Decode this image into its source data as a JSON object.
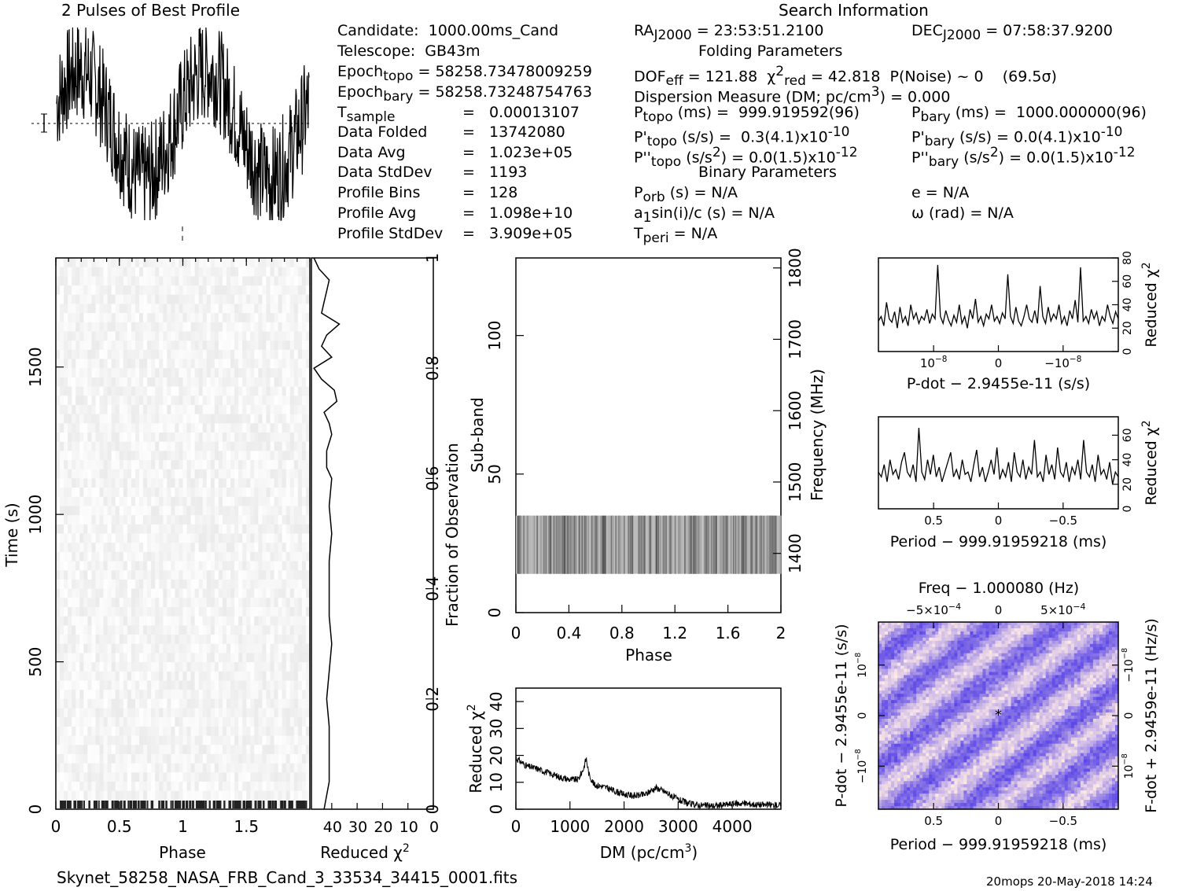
{
  "profile": {
    "title": "2 Pulses of Best Profile"
  },
  "info": {
    "search_title": "Search Information",
    "candidate": "Candidate:  1000.00ms_Cand",
    "telescope": "Telescope:  GB43m",
    "epoch_topo_lbl": "Epoch",
    "epoch_topo_sub": "topo",
    "epoch_topo_val": " = 58258.73478009259",
    "epoch_bary_lbl": "Epoch",
    "epoch_bary_sub": "bary",
    "epoch_bary_val": " = 58258.73248754763",
    "tsample_lbl": "T",
    "tsample_sub": "sample",
    "tsample_val": "=   0.00013107",
    "data_folded_lbl": "Data Folded",
    "data_folded_val": "=   13742080",
    "data_avg_lbl": "Data Avg",
    "data_avg_val": "=   1.023e+05",
    "data_std_lbl": "Data StdDev",
    "data_std_val": "=   1193",
    "prof_bins_lbl": "Profile Bins",
    "prof_bins_val": "=   128",
    "prof_avg_lbl": "Profile Avg",
    "prof_avg_val": "=   1.098e+10",
    "prof_std_lbl": "Profile StdDev",
    "prof_std_val": "=   3.909e+05",
    "ra_lbl": "RA",
    "ra_sub": "J2000",
    "ra_val": " = 23:53:51.2100",
    "dec_lbl": "DEC",
    "dec_sub": "J2000",
    "dec_val": " = 07:58:37.9200",
    "folding_title": "Folding Parameters",
    "dof_lbl": "DOF",
    "dof_sub": "eff",
    "dof_val": " = 121.88  ",
    "chi_sym": "χ",
    "chi_sup": "2",
    "chi_sub": "red",
    "chi_val": " = 42.818  P(Noise) ~ 0    (69.5σ)",
    "dm_text": "Dispersion Measure (DM; pc/cm",
    "dm_sup": "3",
    "dm_val": ") = 0.000",
    "ptopo_lbl": "P",
    "ptopo_sub": "topo",
    "ptopo_val": " (ms) =  999.919592(96)",
    "pbary_lbl": "P",
    "pbary_sub": "bary",
    "pbary_val": " (ms) =  1000.000000(96)",
    "pdtopo_lbl": "P'",
    "pdtopo_sub": "topo",
    "pdtopo_val": " (s/s) =  0.3(4.1)x10",
    "pdtopo_exp": "-10",
    "pdbary_lbl": "P'",
    "pdbary_sub": "bary",
    "pdbary_val": " (s/s) = 0.0(4.1)x10",
    "pdbary_exp": "-10",
    "pddtopo_lbl": "P''",
    "pddtopo_sub": "topo",
    "pddtopo_val": " (s/s",
    "pddtopo_sup": "2",
    "pddtopo_val2": ") = 0.0(1.5)x10",
    "pddtopo_exp": "-12",
    "pddbary_lbl": "P''",
    "pddbary_sub": "bary",
    "pddbary_val": " (s/s",
    "pddbary_sup": "2",
    "pddbary_val2": ") = 0.0(1.5)x10",
    "pddbary_exp": "-12",
    "binary_title": "Binary Parameters",
    "porb_lbl": "P",
    "porb_sub": "orb",
    "porb_val": " (s) = N/A",
    "e_val": "e = N/A",
    "asini_lbl": "a",
    "asini_sub": "1",
    "asini_val": "sin(i)/c (s) = N/A",
    "omega_val": "ω (rad) = N/A",
    "tperi_lbl": "T",
    "tperi_sub": "peri",
    "tperi_val": " = N/A"
  },
  "footer": {
    "filename": "Skynet_58258_NASA_FRB_Cand_3_33534_34415_0001.fits",
    "stamp": "20mops 20-May-2018 14:24"
  },
  "colors": {
    "line": "#000000",
    "pdot_map_base": "#8888dd",
    "grey": "#dddddd"
  },
  "chart_data": [
    {
      "type": "line",
      "name": "pulse-profile",
      "title": "2 Pulses of Best Profile",
      "xlim": [
        0,
        2
      ],
      "pulses_shown": 2,
      "note_errorbar": true
    },
    {
      "type": "heatmap",
      "name": "time-vs-phase",
      "xlabel": "Phase",
      "ylabel": "Time (s)",
      "xlim": [
        0,
        2
      ],
      "ylim": [
        0,
        1870
      ],
      "xticks": [
        "0",
        "0.5",
        "1",
        "1.5"
      ],
      "yticks": [
        "0",
        "500",
        "1000",
        "1500"
      ],
      "colormap": "grey"
    },
    {
      "type": "line",
      "name": "reduced-chi2-vs-time",
      "xlabel": "Reduced χ2",
      "xticks": [
        "40",
        "30",
        "20",
        "10",
        "0"
      ],
      "y2label": "Fraction of Observation",
      "y2ticks": [
        "0",
        "0.2",
        "0.4",
        "0.6",
        "0.8",
        "1"
      ],
      "x_reversed": true,
      "xlim": [
        0,
        48
      ],
      "fraction": [
        0.0,
        0.05,
        0.1,
        0.15,
        0.2,
        0.25,
        0.3,
        0.35,
        0.4,
        0.45,
        0.5,
        0.55,
        0.6,
        0.62,
        0.65,
        0.68,
        0.7,
        0.72,
        0.74,
        0.76,
        0.78,
        0.8,
        0.82,
        0.84,
        0.86,
        0.88,
        0.9,
        0.92,
        0.94,
        0.96,
        0.98,
        1.0
      ],
      "values": [
        43,
        41,
        41,
        41,
        42,
        41,
        40,
        41,
        41,
        41,
        40,
        41,
        40,
        42,
        42,
        40,
        41,
        43,
        38,
        39,
        44,
        47,
        40,
        44,
        42,
        37,
        44,
        43,
        42,
        41,
        45,
        47
      ]
    },
    {
      "type": "heatmap",
      "name": "subband-vs-phase",
      "xlabel": "Phase",
      "ylabel": "Sub-band",
      "y2label": "Frequency (MHz)",
      "xlim": [
        0,
        2
      ],
      "ylim": [
        0,
        128
      ],
      "xticks": [
        "0",
        "0.4",
        "0.8",
        "1.2",
        "1.6",
        "2"
      ],
      "yticks": [
        "0",
        "50",
        "100"
      ],
      "y2ticks": [
        "1400",
        "1500",
        "1600",
        "1700",
        "1800"
      ],
      "y2lim": [
        1317,
        1814
      ],
      "active_subbands": [
        14,
        35
      ]
    },
    {
      "type": "line",
      "name": "dm-chi2",
      "xlabel": "DM (pc/cm3)",
      "ylabel": "Reduced χ2",
      "xlim": [
        0,
        4900
      ],
      "ylim": [
        0,
        45
      ],
      "xticks": [
        "0",
        "1000",
        "2000",
        "3000",
        "4000"
      ],
      "yticks": [
        "0",
        "10",
        "20",
        "30",
        "40"
      ],
      "x": [
        0,
        200,
        400,
        600,
        800,
        1000,
        1150,
        1250,
        1300,
        1350,
        1450,
        1600,
        1800,
        2000,
        2200,
        2400,
        2500,
        2600,
        2700,
        2800,
        3000,
        3200,
        3400,
        3600,
        3800,
        4000,
        4200,
        4400,
        4600,
        4900
      ],
      "values": [
        19,
        16,
        15,
        13.5,
        12,
        11,
        11,
        15,
        19,
        13,
        9,
        8.5,
        7,
        5.5,
        5,
        5.5,
        7,
        8,
        7,
        6,
        3.5,
        2,
        1.5,
        1.2,
        1.5,
        2,
        2.2,
        1.8,
        1.6,
        1.5
      ]
    },
    {
      "type": "line",
      "name": "pdot-chi2",
      "xlabel": "P-dot − 2.9455e-11 (s/s)",
      "y2label": "Reduced χ2",
      "xticks": [
        "10−8",
        "0",
        "−10−8"
      ],
      "y2ticks": [
        "0",
        "20",
        "40",
        "60",
        "80"
      ],
      "ylim": [
        0,
        80
      ],
      "values": [
        26,
        30,
        22,
        42,
        28,
        25,
        34,
        20,
        38,
        25,
        30,
        22,
        40,
        28,
        33,
        24,
        30,
        27,
        36,
        24,
        32,
        28,
        74,
        30,
        24,
        35,
        27,
        22,
        31,
        25,
        40,
        24,
        30,
        20,
        36,
        28,
        45,
        25,
        30,
        22,
        32,
        28,
        40,
        26,
        30,
        24,
        33,
        28,
        66,
        30,
        24,
        38,
        26,
        22,
        30,
        40,
        28,
        25,
        35,
        24,
        56,
        30,
        24,
        38,
        26,
        32,
        28,
        40,
        24,
        30,
        22,
        35,
        28,
        44,
        25,
        72,
        26,
        30,
        24,
        36,
        28,
        34,
        22,
        30,
        26,
        40,
        30,
        24,
        34,
        28
      ]
    },
    {
      "type": "line",
      "name": "period-chi2",
      "xlabel": "Period − 999.91959218 (ms)",
      "y2label": "Reduced χ2",
      "xticks": [
        "0.5",
        "0",
        "−0.5"
      ],
      "y2ticks": [
        "0",
        "20",
        "40",
        "60"
      ],
      "ylim": [
        0,
        75
      ],
      "values": [
        30,
        26,
        36,
        22,
        40,
        28,
        32,
        24,
        38,
        46,
        30,
        26,
        36,
        22,
        66,
        30,
        24,
        40,
        28,
        44,
        26,
        34,
        22,
        30,
        38,
        46,
        26,
        32,
        24,
        40,
        28,
        30,
        22,
        36,
        48,
        26,
        34,
        22,
        30,
        40,
        28,
        50,
        24,
        32,
        26,
        38,
        22,
        46,
        30,
        26,
        40,
        24,
        34,
        28,
        56,
        26,
        30,
        22,
        44,
        28,
        36,
        24,
        50,
        30,
        26,
        38,
        22,
        34,
        28,
        40,
        24,
        56,
        30,
        26,
        36,
        22,
        44,
        28,
        32,
        24,
        38,
        20,
        30,
        26
      ]
    },
    {
      "type": "heatmap",
      "name": "period-pdot-plane",
      "title": "Freq − 1.000080 (Hz)",
      "xlabel": "Period − 999.91959218 (ms)",
      "ylabel": "P-dot − 2.9455e-11 (s/s)",
      "y2label": "F-dot + 2.9459e-11 (Hz/s)",
      "xticks": [
        "0.5",
        "0",
        "−0.5"
      ],
      "x2ticks": [
        "−5×10−4",
        "0",
        "5×10−4"
      ],
      "yticks": [
        "10−8",
        "0",
        "−10−8"
      ],
      "y2ticks": [
        "−10−8",
        "0",
        "10−8"
      ],
      "colormap": "blue-white"
    }
  ]
}
